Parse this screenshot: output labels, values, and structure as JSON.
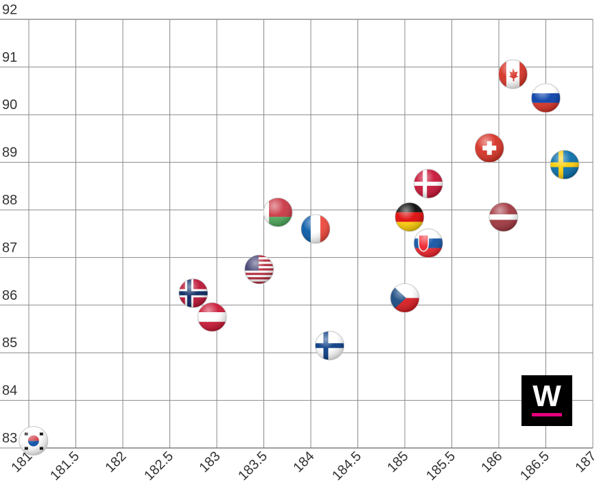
{
  "colors": {
    "grid": "#888888",
    "background": "#ffffff",
    "brand_accent": "#e4007c"
  },
  "logo": {
    "letter": "W",
    "icon": "brand-logo"
  },
  "chart_data": {
    "type": "scatter",
    "title": "",
    "xlabel": "",
    "ylabel": "",
    "xlim": [
      181,
      187
    ],
    "ylim": [
      83,
      92
    ],
    "grid": true,
    "x_ticks": [
      "181",
      "181.5",
      "182",
      "182.5",
      "183",
      "183.5",
      "184",
      "184.5",
      "185",
      "185.5",
      "186",
      "186.5",
      "187"
    ],
    "x_tick_values": [
      181,
      181.5,
      182,
      182.5,
      183,
      183.5,
      184,
      184.5,
      185,
      185.5,
      186,
      186.5,
      187
    ],
    "y_ticks": [
      "83",
      "84",
      "85",
      "86",
      "87",
      "88",
      "89",
      "90",
      "91",
      "92"
    ],
    "y_tick_values": [
      82.8,
      83.8,
      84.8,
      85.8,
      86.8,
      87.8,
      88.8,
      89.8,
      90.8,
      91.8
    ],
    "points": [
      {
        "flag": "south-korea",
        "x": 181.05,
        "y": 82.95
      },
      {
        "flag": "norway",
        "x": 182.75,
        "y": 86.05
      },
      {
        "flag": "austria",
        "x": 182.95,
        "y": 85.55
      },
      {
        "flag": "usa",
        "x": 183.45,
        "y": 86.55
      },
      {
        "flag": "belarus",
        "x": 183.65,
        "y": 87.75
      },
      {
        "flag": "france",
        "x": 184.05,
        "y": 87.4
      },
      {
        "flag": "finland",
        "x": 184.2,
        "y": 84.95
      },
      {
        "flag": "czech-republic",
        "x": 185.0,
        "y": 85.95
      },
      {
        "flag": "germany",
        "x": 185.05,
        "y": 87.65
      },
      {
        "flag": "slovakia",
        "x": 185.25,
        "y": 87.1
      },
      {
        "flag": "denmark",
        "x": 185.25,
        "y": 88.35
      },
      {
        "flag": "switzerland",
        "x": 185.9,
        "y": 89.1
      },
      {
        "flag": "latvia",
        "x": 186.05,
        "y": 87.65
      },
      {
        "flag": "canada",
        "x": 186.15,
        "y": 90.65
      },
      {
        "flag": "russia",
        "x": 186.5,
        "y": 90.15
      },
      {
        "flag": "sweden",
        "x": 186.7,
        "y": 88.75
      }
    ]
  }
}
